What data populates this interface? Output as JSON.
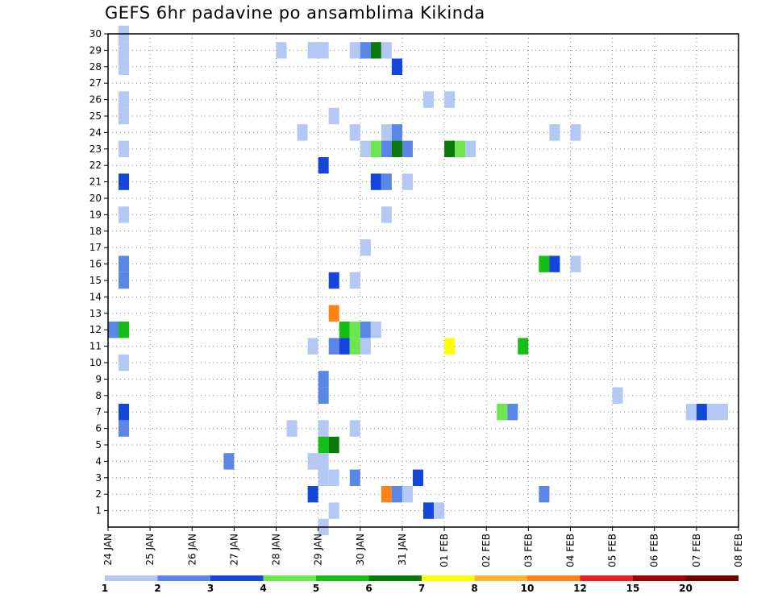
{
  "chart_data": {
    "type": "heatmap",
    "title": "GEFS 6hr padavine po ansamblima Kikinda",
    "xlabel": "",
    "ylabel": "",
    "x_tick_labels": [
      "24 JAN",
      "25 JAN",
      "26 JAN",
      "27 JAN",
      "28 JAN",
      "29 JAN",
      "30 JAN",
      "31 JAN",
      "01 FEB",
      "02 FEB",
      "03 FEB",
      "04 FEB",
      "05 FEB",
      "06 FEB",
      "07 FEB",
      "08 FEB"
    ],
    "x_unit": "6h steps from 24 JAN 00Z",
    "xlim": [
      0,
      60
    ],
    "y_ticks": [
      1,
      2,
      3,
      4,
      5,
      6,
      7,
      8,
      9,
      10,
      11,
      12,
      13,
      14,
      15,
      16,
      17,
      18,
      19,
      20,
      21,
      22,
      23,
      24,
      25,
      26,
      27,
      28,
      29,
      30
    ],
    "ylim": [
      0,
      30
    ],
    "grid": true,
    "colorbar": {
      "tick_labels": [
        "1",
        "2",
        "3",
        "4",
        "5",
        "6",
        "7",
        "8",
        "10",
        "12",
        "15",
        "20"
      ],
      "colors": [
        "#b4c8f4",
        "#5a87e6",
        "#1446dc",
        "#6ee650",
        "#14be14",
        "#0a780a",
        "#ffff00",
        "#ffb432",
        "#ff8214",
        "#e61e1e",
        "#a00000",
        "#6e0000"
      ],
      "position": "bottom"
    },
    "cells": [
      [
        1,
        30,
        1
      ],
      [
        1,
        29,
        1
      ],
      [
        1,
        28,
        1
      ],
      [
        1,
        26,
        1
      ],
      [
        1,
        25,
        1
      ],
      [
        1,
        23,
        1
      ],
      [
        1,
        21,
        3
      ],
      [
        1,
        19,
        1
      ],
      [
        1,
        16,
        2
      ],
      [
        1,
        15,
        2
      ],
      [
        0,
        12,
        2
      ],
      [
        1,
        12,
        5
      ],
      [
        1,
        10,
        1
      ],
      [
        1,
        7,
        3
      ],
      [
        1,
        6,
        2
      ],
      [
        16,
        29,
        1
      ],
      [
        19,
        29,
        1
      ],
      [
        20,
        29,
        1
      ],
      [
        23,
        29,
        1
      ],
      [
        24,
        29,
        2
      ],
      [
        25,
        29,
        6
      ],
      [
        26,
        29,
        1
      ],
      [
        27,
        28,
        3
      ],
      [
        30,
        26,
        1
      ],
      [
        32,
        26,
        1
      ],
      [
        21,
        25,
        1
      ],
      [
        18,
        24,
        1
      ],
      [
        23,
        24,
        1
      ],
      [
        26,
        24,
        1
      ],
      [
        27,
        24,
        2
      ],
      [
        42,
        24,
        1
      ],
      [
        44,
        24,
        1
      ],
      [
        24,
        23,
        1
      ],
      [
        25,
        23,
        4
      ],
      [
        26,
        23,
        2
      ],
      [
        27,
        23,
        6
      ],
      [
        28,
        23,
        2
      ],
      [
        32,
        23,
        6
      ],
      [
        33,
        23,
        4
      ],
      [
        34,
        23,
        1
      ],
      [
        20,
        22,
        3
      ],
      [
        25,
        21,
        3
      ],
      [
        26,
        21,
        2
      ],
      [
        28,
        21,
        1
      ],
      [
        26,
        19,
        1
      ],
      [
        24,
        17,
        1
      ],
      [
        41,
        16,
        5
      ],
      [
        42,
        16,
        3
      ],
      [
        44,
        16,
        1
      ],
      [
        21,
        15,
        3
      ],
      [
        23,
        15,
        1
      ],
      [
        21,
        13,
        9
      ],
      [
        22,
        12,
        5
      ],
      [
        23,
        12,
        4
      ],
      [
        24,
        12,
        2
      ],
      [
        25,
        12,
        1
      ],
      [
        19,
        11,
        1
      ],
      [
        21,
        11,
        2
      ],
      [
        22,
        11,
        3
      ],
      [
        23,
        11,
        4
      ],
      [
        24,
        11,
        1
      ],
      [
        32,
        11,
        7
      ],
      [
        39,
        11,
        5
      ],
      [
        20,
        9,
        2
      ],
      [
        20,
        8,
        2
      ],
      [
        48,
        8,
        1
      ],
      [
        37,
        7,
        4
      ],
      [
        38,
        7,
        2
      ],
      [
        55,
        7,
        1
      ],
      [
        56,
        7,
        3
      ],
      [
        57,
        7,
        1
      ],
      [
        58,
        7,
        1
      ],
      [
        17,
        6,
        1
      ],
      [
        20,
        6,
        1
      ],
      [
        23,
        6,
        1
      ],
      [
        20,
        5,
        5
      ],
      [
        21,
        5,
        6
      ],
      [
        11,
        4,
        2
      ],
      [
        19,
        4,
        1
      ],
      [
        20,
        4,
        1
      ],
      [
        20,
        3,
        1
      ],
      [
        21,
        3,
        1
      ],
      [
        23,
        3,
        2
      ],
      [
        29,
        3,
        3
      ],
      [
        19,
        2,
        3
      ],
      [
        26,
        2,
        9
      ],
      [
        27,
        2,
        2
      ],
      [
        28,
        2,
        1
      ],
      [
        41,
        2,
        2
      ],
      [
        21,
        1,
        1
      ],
      [
        30,
        1,
        3
      ],
      [
        31,
        1,
        1
      ],
      [
        20,
        0,
        1
      ]
    ]
  }
}
